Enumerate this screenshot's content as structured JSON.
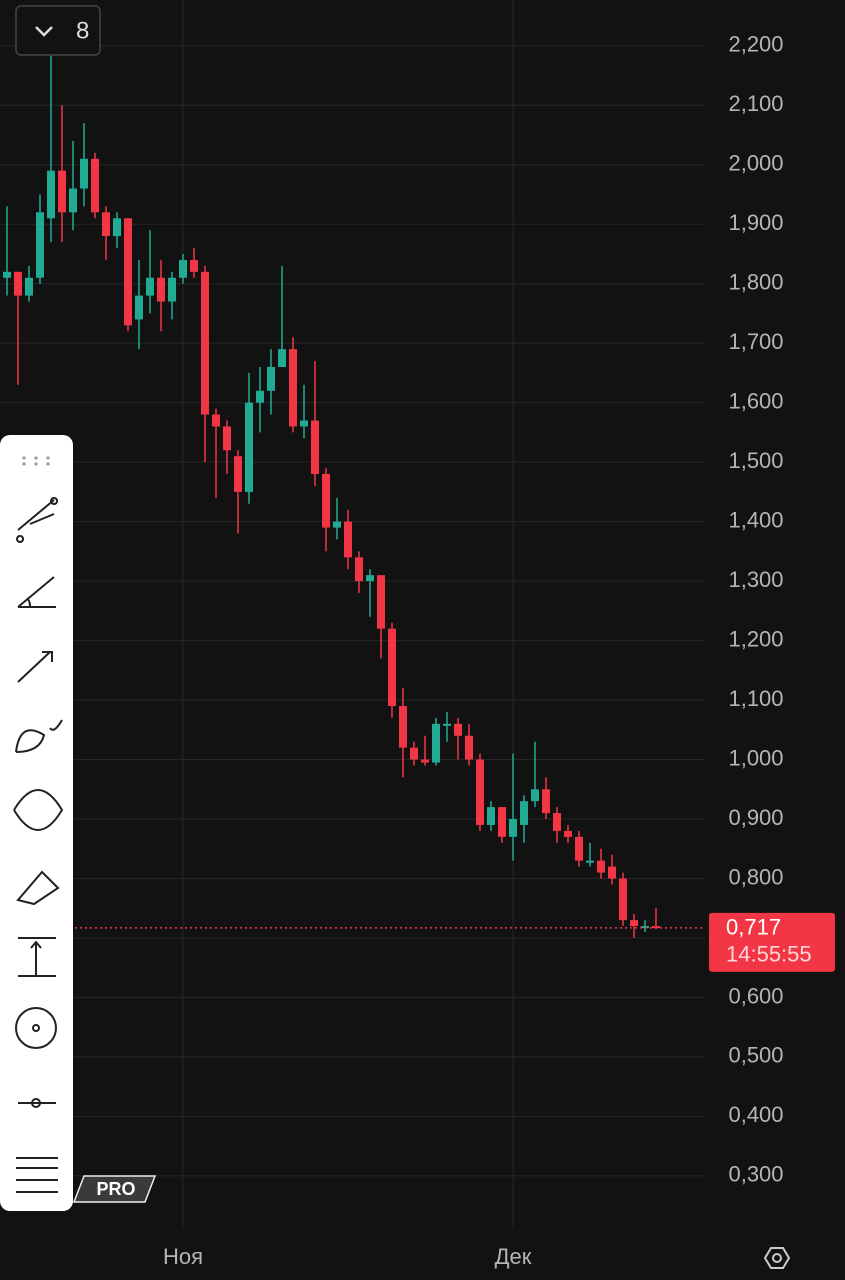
{
  "interval_button": "8",
  "pro_badge": "PRO",
  "chart_data": {
    "type": "candlestick",
    "categories": [
      null,
      null,
      null,
      null,
      null,
      null,
      null,
      null,
      null,
      null,
      null,
      null,
      null,
      null,
      null,
      null,
      "Ноя",
      null,
      null,
      null,
      null,
      null,
      null,
      null,
      null,
      null,
      null,
      null,
      null,
      null,
      null,
      null,
      null,
      null,
      null,
      null,
      null,
      null,
      null,
      null,
      null,
      null,
      null,
      null,
      null,
      null,
      "Дек",
      null,
      null,
      null,
      null,
      null,
      null,
      null,
      null,
      null,
      null,
      null,
      null,
      null
    ],
    "open": [
      1.81,
      1.82,
      1.78,
      1.81,
      1.91,
      1.99,
      1.92,
      1.96,
      2.01,
      1.92,
      1.88,
      1.91,
      1.74,
      1.78,
      1.81,
      1.77,
      1.81,
      1.84,
      1.82,
      1.58,
      1.56,
      1.51,
      1.45,
      1.6,
      1.62,
      1.66,
      1.69,
      1.56,
      1.57,
      1.48,
      1.39,
      1.4,
      1.34,
      1.3,
      1.31,
      1.22,
      1.09,
      1.02,
      1.0,
      0.995,
      1.06,
      1.06,
      1.04,
      1.0,
      0.89,
      0.92,
      0.87,
      0.89,
      0.93,
      0.95,
      0.91,
      0.88,
      0.87,
      0.83,
      0.83,
      0.82,
      0.8,
      0.73,
      0.717,
      0.72
    ],
    "high": [
      1.93,
      1.82,
      1.83,
      1.95,
      2.19,
      2.1,
      2.04,
      2.07,
      2.02,
      1.93,
      1.92,
      1.91,
      1.84,
      1.89,
      1.84,
      1.82,
      1.85,
      1.86,
      1.83,
      1.59,
      1.57,
      1.52,
      1.65,
      1.66,
      1.69,
      1.83,
      1.71,
      1.63,
      1.67,
      1.49,
      1.44,
      1.42,
      1.35,
      1.32,
      1.31,
      1.23,
      1.12,
      1.03,
      1.04,
      1.07,
      1.08,
      1.07,
      1.06,
      1.01,
      0.93,
      0.92,
      1.01,
      0.94,
      1.03,
      0.97,
      0.92,
      0.89,
      0.88,
      0.86,
      0.85,
      0.84,
      0.81,
      0.74,
      0.73,
      0.75
    ],
    "low": [
      1.78,
      1.63,
      1.77,
      1.8,
      1.87,
      1.87,
      1.89,
      1.93,
      1.91,
      1.84,
      1.86,
      1.72,
      1.69,
      1.75,
      1.72,
      1.74,
      1.8,
      1.81,
      1.5,
      1.44,
      1.48,
      1.38,
      1.43,
      1.55,
      1.58,
      1.66,
      1.55,
      1.54,
      1.46,
      1.35,
      1.37,
      1.32,
      1.28,
      1.24,
      1.17,
      1.07,
      0.97,
      0.99,
      0.99,
      0.99,
      1.03,
      1.0,
      0.99,
      0.88,
      0.88,
      0.86,
      0.83,
      0.86,
      0.92,
      0.9,
      0.86,
      0.86,
      0.82,
      0.82,
      0.8,
      0.79,
      0.72,
      0.7,
      0.71,
      0.715
    ],
    "close": [
      1.82,
      1.78,
      1.81,
      1.92,
      1.99,
      1.92,
      1.96,
      2.01,
      1.92,
      1.88,
      1.91,
      1.73,
      1.78,
      1.81,
      1.77,
      1.81,
      1.84,
      1.82,
      1.58,
      1.56,
      1.52,
      1.45,
      1.6,
      1.62,
      1.66,
      1.69,
      1.56,
      1.57,
      1.48,
      1.39,
      1.4,
      1.34,
      1.3,
      1.31,
      1.22,
      1.09,
      1.02,
      1.0,
      0.995,
      1.06,
      1.06,
      1.04,
      1.0,
      0.89,
      0.92,
      0.87,
      0.9,
      0.93,
      0.95,
      0.91,
      0.88,
      0.87,
      0.83,
      0.83,
      0.81,
      0.8,
      0.73,
      0.72,
      0.72,
      0.717
    ],
    "up_color": "#22ab94",
    "down_color": "#f23645",
    "ylim": [
      0.209,
      2.277
    ],
    "yticks": [
      {
        "value": 2.2,
        "label": "2,200"
      },
      {
        "value": 2.1,
        "label": "2,100"
      },
      {
        "value": 2.0,
        "label": "2,000"
      },
      {
        "value": 1.9,
        "label": "1,900"
      },
      {
        "value": 1.8,
        "label": "1,800"
      },
      {
        "value": 1.7,
        "label": "1,700"
      },
      {
        "value": 1.6,
        "label": "1,600"
      },
      {
        "value": 1.5,
        "label": "1,500"
      },
      {
        "value": 1.4,
        "label": "1,400"
      },
      {
        "value": 1.3,
        "label": "1,300"
      },
      {
        "value": 1.2,
        "label": "1,200"
      },
      {
        "value": 1.1,
        "label": "1,100"
      },
      {
        "value": 1.0,
        "label": "1,000"
      },
      {
        "value": 0.9,
        "label": "0,900"
      },
      {
        "value": 0.8,
        "label": "0,800"
      },
      {
        "value": 0.7,
        "label": "0,700"
      },
      {
        "value": 0.6,
        "label": "0,600"
      },
      {
        "value": 0.5,
        "label": "0,500"
      },
      {
        "value": 0.4,
        "label": "0,400"
      },
      {
        "value": 0.3,
        "label": "0,300"
      }
    ],
    "grid": true,
    "current_price": {
      "value": 0.717,
      "label": "0,717",
      "time": "14:55:55"
    }
  }
}
